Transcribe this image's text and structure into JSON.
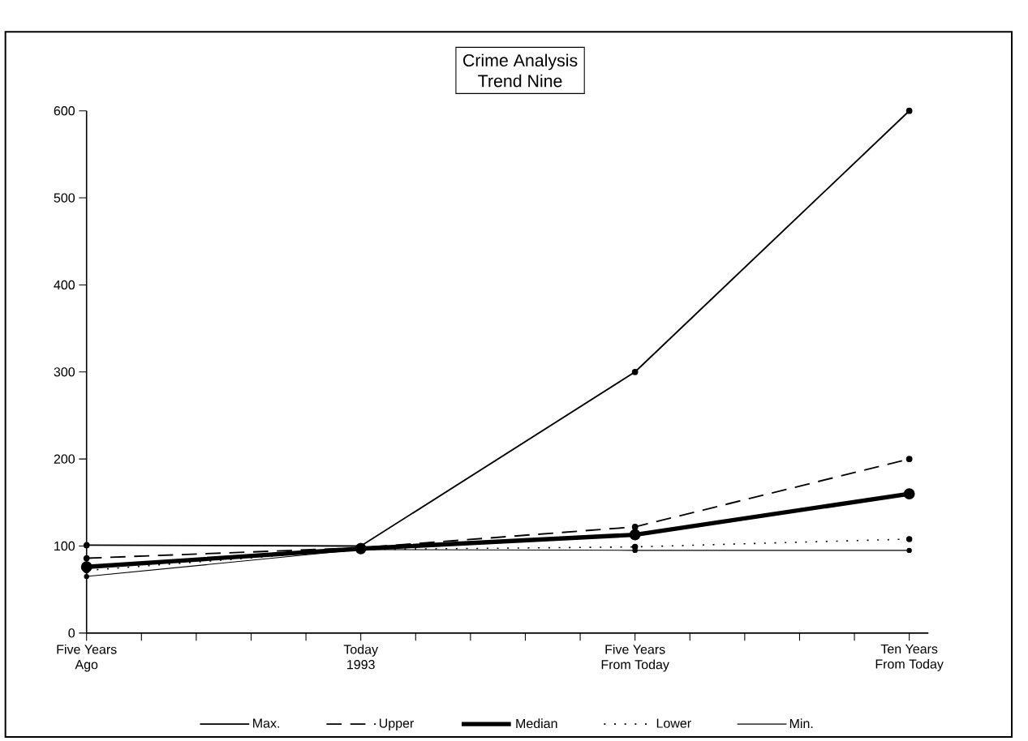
{
  "chart_data": {
    "type": "line",
    "title": "Crime Analysis\nTrend  Nine",
    "categories": [
      "Five Years\nAgo",
      "Today\n1993",
      "Five Years\nFrom Today",
      "Ten Years\nFrom Today"
    ],
    "ylim": [
      0,
      600
    ],
    "yticks": [
      0,
      100,
      200,
      300,
      400,
      500,
      600
    ],
    "grid": false,
    "legend": "bottom",
    "marker": "circle",
    "series": [
      {
        "name": "Max.",
        "color": "#000000",
        "line_style": "solid",
        "values": [
          101,
          100,
          300,
          600
        ]
      },
      {
        "name": "Upper",
        "color": "#000000",
        "line_style": "dashed",
        "values": [
          86,
          98,
          122,
          200
        ]
      },
      {
        "name": "Median",
        "color": "#000000",
        "line_style": "solid",
        "values": [
          76,
          97,
          113,
          160
        ]
      },
      {
        "name": "Lower",
        "color": "#000000",
        "line_style": "dotted",
        "values": [
          72,
          96,
          99,
          108
        ]
      },
      {
        "name": "Min.",
        "color": "#000000",
        "line_style": "solid",
        "values": [
          65,
          96,
          95,
          95
        ]
      }
    ]
  }
}
